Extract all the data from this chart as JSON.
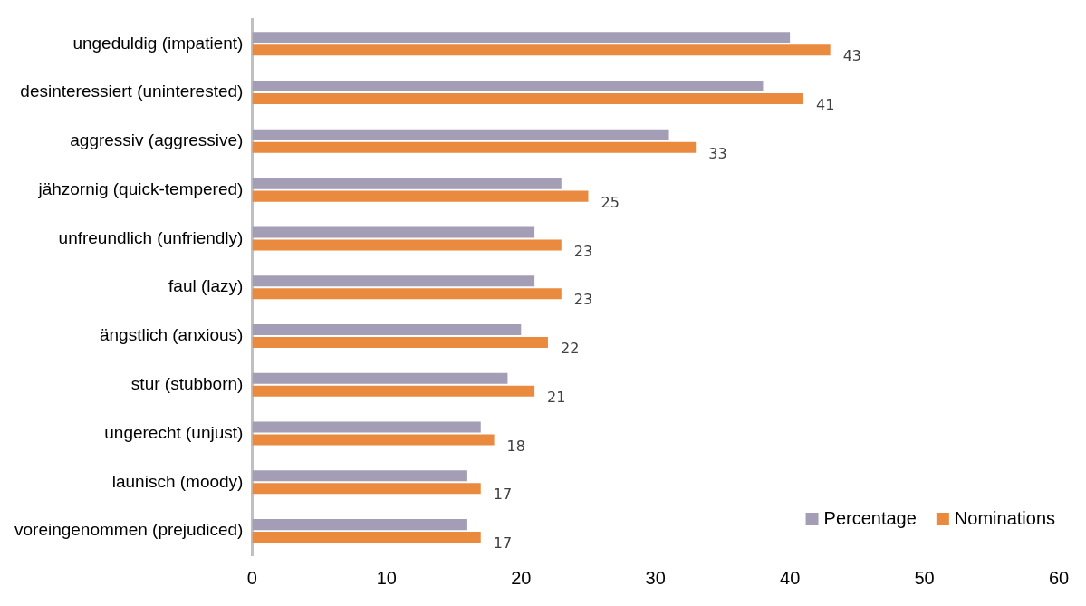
{
  "chart_data": {
    "type": "bar",
    "orientation": "horizontal",
    "categories": [
      "ungeduldig (impatient)",
      "desinteressiert (uninterested)",
      "aggressiv (aggressive)",
      "jähzornig (quick-tempered)",
      "unfreundlich (unfriendly)",
      "faul (lazy)",
      "ängstlich (anxious)",
      "stur (stubborn)",
      "ungerecht (unjust)",
      "launisch (moody)",
      "voreingenommen (prejudiced)"
    ],
    "series": [
      {
        "name": "Percentage",
        "color": "#a39db5",
        "values": [
          40,
          38,
          31,
          23,
          21,
          21,
          20,
          19,
          17,
          16,
          16
        ]
      },
      {
        "name": "Nominations",
        "color": "#e98a3e",
        "values": [
          43,
          41,
          33,
          25,
          23,
          23,
          22,
          21,
          18,
          17,
          17
        ],
        "value_labels": [
          "43",
          "41",
          "33",
          "25",
          "23",
          "23",
          "22",
          "21",
          "18",
          "17",
          "17"
        ]
      }
    ],
    "xlim": [
      0,
      60
    ],
    "xticks": [
      0,
      10,
      20,
      30,
      40,
      50,
      60
    ],
    "grid": false,
    "legend": "bottom right"
  }
}
